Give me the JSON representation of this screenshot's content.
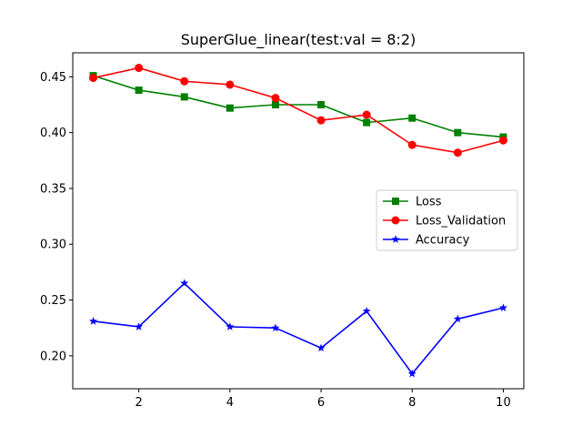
{
  "chart_data": {
    "type": "line",
    "title": "SuperGlue_linear(test:val = 8:2)",
    "xlabel": "",
    "ylabel": "",
    "x": [
      1,
      2,
      3,
      4,
      5,
      6,
      7,
      8,
      9,
      10
    ],
    "xticks": [
      2,
      4,
      6,
      8,
      10
    ],
    "yticks": [
      0.2,
      0.25,
      0.3,
      0.35,
      0.4,
      0.45
    ],
    "xlim": [
      0.55,
      10.45
    ],
    "ylim": [
      0.1705,
      0.4715
    ],
    "grid": false,
    "legend_position": "center-right",
    "series": [
      {
        "name": "Loss",
        "color": "#008000",
        "marker": "square",
        "values": [
          0.451,
          0.438,
          0.432,
          0.422,
          0.425,
          0.425,
          0.409,
          0.413,
          0.4,
          0.396
        ]
      },
      {
        "name": "Loss_Validation",
        "color": "#ff0000",
        "marker": "circle",
        "values": [
          0.449,
          0.458,
          0.446,
          0.443,
          0.431,
          0.411,
          0.416,
          0.389,
          0.382,
          0.393
        ]
      },
      {
        "name": "Accuracy",
        "color": "#0000ff",
        "marker": "star",
        "values": [
          0.231,
          0.226,
          0.265,
          0.226,
          0.225,
          0.207,
          0.24,
          0.184,
          0.233,
          0.243
        ]
      }
    ]
  }
}
